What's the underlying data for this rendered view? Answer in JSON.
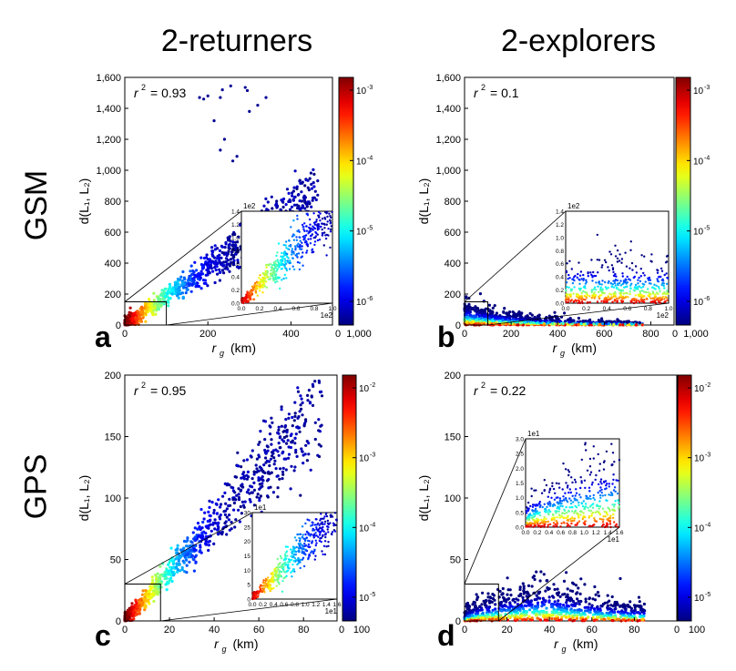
{
  "column_titles": [
    "2-returners",
    "2-explorers"
  ],
  "row_titles": [
    "GSM",
    "GPS"
  ],
  "chart_data": [
    {
      "type": "scatter",
      "panel": "a",
      "r2_label": "r",
      "r2_value": "= 0.93",
      "xlabel_main": "r",
      "xlabel_sub": "g",
      "xlabel_unit": "(km)",
      "ylabel": "d(L₁, L₂)",
      "xlim": [
        0,
        500
      ],
      "ylim": [
        0,
        1600
      ],
      "xticks": [
        0,
        200,
        400
      ],
      "xtick_labels": [
        "0",
        "200",
        "400"
      ],
      "yticks": [
        0,
        200,
        400,
        600,
        800,
        1000,
        1200,
        1400,
        1600
      ],
      "ytick_labels": [
        "0",
        "200",
        "400",
        "600",
        "800",
        "1,000",
        "1,200",
        "1,400",
        "1,600"
      ],
      "colorbar": {
        "range": [
          0,
          1000
        ],
        "tick_labels": [
          "0",
          "1,000"
        ],
        "log_ticks": [
          "10",
          "10",
          "10",
          "10"
        ],
        "log_exps": [
          "-3",
          "-4",
          "-5",
          "-6"
        ]
      },
      "pattern": "returner",
      "slope": 1.85,
      "inset": {
        "box_x": [
          0,
          100
        ],
        "box_y": [
          0,
          150
        ],
        "xtick_labels": [
          "0.0",
          "0.2",
          "0.4",
          "0.6",
          "0.8",
          "1.0"
        ],
        "ytick_labels": [
          "0.0",
          "0.2",
          "0.4",
          "0.6",
          "0.8",
          "1.0",
          "1.2",
          "1.4"
        ],
        "x_multiplier": "1e2",
        "y_multiplier": "1e2"
      },
      "outliers": [
        [
          180,
          1470
        ],
        [
          200,
          1480
        ],
        [
          190,
          1460
        ],
        [
          230,
          1470
        ],
        [
          235,
          1520
        ],
        [
          255,
          1545
        ],
        [
          290,
          1535
        ],
        [
          295,
          1515
        ],
        [
          320,
          1420
        ],
        [
          300,
          1380
        ],
        [
          340,
          1470
        ],
        [
          240,
          1200
        ],
        [
          270,
          1090
        ],
        [
          260,
          1060
        ],
        [
          230,
          1130
        ],
        [
          215,
          1320
        ]
      ]
    },
    {
      "type": "scatter",
      "panel": "b",
      "r2_label": "r",
      "r2_value": "= 0.1",
      "xlabel_main": "r",
      "xlabel_sub": "g",
      "xlabel_unit": "(km)",
      "ylabel": "d(L₁, L₂)",
      "xlim": [
        0,
        900
      ],
      "ylim": [
        0,
        1600
      ],
      "xticks": [
        0,
        200,
        400,
        600,
        800
      ],
      "xtick_labels": [
        "0",
        "200",
        "400",
        "600",
        "800"
      ],
      "yticks": [
        0,
        200,
        400,
        600,
        800,
        1000,
        1200,
        1400,
        1600
      ],
      "ytick_labels": [
        "0",
        "200",
        "400",
        "600",
        "800",
        "1,000",
        "1,200",
        "1,400",
        "1,600"
      ],
      "colorbar": {
        "range": [
          0,
          1000
        ],
        "tick_labels": [
          "0",
          "1,000"
        ],
        "log_ticks": [
          "10",
          "10",
          "10",
          "10"
        ],
        "log_exps": [
          "-3",
          "-4",
          "-5",
          "-6"
        ]
      },
      "pattern": "explorer",
      "inset": {
        "box_x": [
          0,
          100
        ],
        "box_y": [
          0,
          150
        ],
        "xtick_labels": [
          "0.0",
          "0.2",
          "0.4",
          "0.6",
          "0.8",
          "1.0"
        ],
        "ytick_labels": [
          "0.0",
          "0.2",
          "0.4",
          "0.6",
          "0.8",
          "1.0",
          "1.2",
          "1.4"
        ],
        "x_multiplier": "1e2",
        "y_multiplier": "1e2"
      },
      "outliers": []
    },
    {
      "type": "scatter",
      "panel": "c",
      "r2_label": "r",
      "r2_value": "= 0.95",
      "xlabel_main": "r",
      "xlabel_sub": "g",
      "xlabel_unit": "(km)",
      "ylabel": "d(L₁, L₂)",
      "xlim": [
        0,
        95
      ],
      "ylim": [
        0,
        200
      ],
      "xticks": [
        0,
        20,
        40,
        60,
        80
      ],
      "xtick_labels": [
        "0",
        "20",
        "40",
        "60",
        "80"
      ],
      "yticks": [
        0,
        50,
        100,
        150,
        200
      ],
      "ytick_labels": [
        "0",
        "50",
        "100",
        "150",
        "200"
      ],
      "colorbar": {
        "range": [
          0,
          100
        ],
        "tick_labels": [
          "0",
          "100"
        ],
        "log_ticks": [
          "10",
          "10",
          "10",
          "10"
        ],
        "log_exps": [
          "-2",
          "-3",
          "-4",
          "-5"
        ]
      },
      "pattern": "returner",
      "slope": 2.0,
      "inset": {
        "box_x": [
          0,
          16
        ],
        "box_y": [
          0,
          30
        ],
        "xtick_labels": [
          "0.0",
          "0.2",
          "0.4",
          "0.6",
          "0.8",
          "1.0",
          "1.2",
          "1.4",
          "1.6"
        ],
        "ytick_labels": [
          "0",
          "5",
          "10",
          "15",
          "20",
          "25",
          "30"
        ],
        "x_multiplier": "1e1",
        "y_multiplier": "1e1"
      },
      "outliers": []
    },
    {
      "type": "scatter",
      "panel": "d",
      "r2_label": "r",
      "r2_value": "= 0.22",
      "xlabel_main": "r",
      "xlabel_sub": "g",
      "xlabel_unit": "(km)",
      "ylabel": "d(L₁, L₂)",
      "xlim": [
        0,
        100
      ],
      "ylim": [
        0,
        200
      ],
      "xticks": [
        0,
        20,
        40,
        60,
        80
      ],
      "xtick_labels": [
        "0",
        "20",
        "40",
        "60",
        "80"
      ],
      "yticks": [
        0,
        50,
        100,
        150,
        200
      ],
      "ytick_labels": [
        "0",
        "50",
        "100",
        "150",
        "200"
      ],
      "colorbar": {
        "range": [
          0,
          100
        ],
        "tick_labels": [
          "0",
          "100"
        ],
        "log_ticks": [
          "10",
          "10",
          "10",
          "10"
        ],
        "log_exps": [
          "-2",
          "-3",
          "-4",
          "-5"
        ]
      },
      "pattern": "explorer",
      "inset": {
        "box_x": [
          0,
          16
        ],
        "box_y": [
          0,
          30
        ],
        "xtick_labels": [
          "0.0",
          "0.2",
          "0.4",
          "0.6",
          "0.8",
          "1.0",
          "1.2",
          "1.4",
          "1.6"
        ],
        "ytick_labels": [
          "0.0",
          "0.5",
          "1.0",
          "1.5",
          "2.0",
          "2.5",
          "3.0"
        ],
        "x_multiplier": "1e1",
        "y_multiplier": "1e1"
      },
      "outliers": []
    }
  ]
}
